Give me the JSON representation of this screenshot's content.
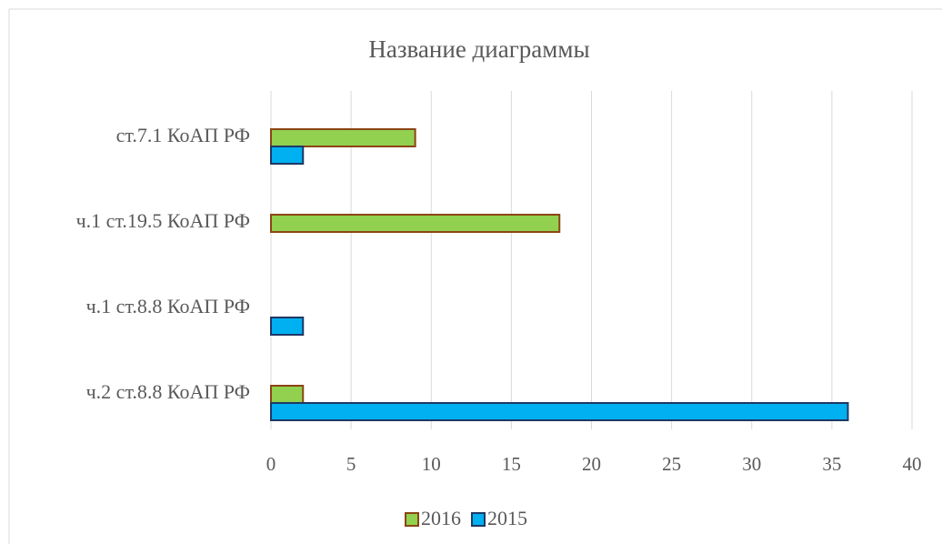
{
  "chart_data": {
    "type": "bar",
    "orientation": "horizontal",
    "title": "Название диаграммы",
    "categories": [
      "ч.2 ст.8.8 КоАП РФ",
      "ч.1 ст.8.8 КоАП РФ",
      "ч.1 ст.19.5 КоАП РФ",
      "ст.7.1 КоАП РФ"
    ],
    "series": [
      {
        "name": "2016",
        "color": "#92d050",
        "values": [
          2,
          null,
          18,
          9
        ]
      },
      {
        "name": "2015",
        "color": "#00b0f0",
        "values": [
          36,
          2,
          null,
          2
        ]
      }
    ],
    "xlim": [
      0,
      40
    ],
    "xticks": [
      0,
      5,
      10,
      15,
      20,
      25,
      30,
      35,
      40
    ],
    "grid": true,
    "legend": "bottom"
  }
}
